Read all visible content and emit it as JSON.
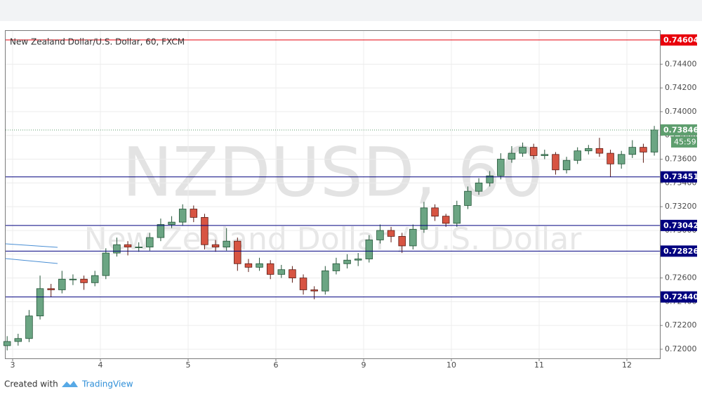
{
  "chart_data": {
    "type": "candlestick",
    "title": "New Zealand Dollar/U.S. Dollar, 60, FXCM",
    "watermark": "NZDUSD, 60",
    "watermark_subtitle": "New Zealand Dollar / U.S. Dollar",
    "footer_text": "Created with",
    "footer_brand": "TradingView",
    "up_color": "#6ba583",
    "down_color": "#d75442",
    "grid": true,
    "xlim": [
      -0.08,
      7.376
    ],
    "xticks": [
      {
        "value": 0,
        "label": "3"
      },
      {
        "value": 1,
        "label": "4"
      },
      {
        "value": 2,
        "label": "5"
      },
      {
        "value": 3,
        "label": "6"
      },
      {
        "value": 4,
        "label": "9"
      },
      {
        "value": 5,
        "label": "10"
      },
      {
        "value": 6,
        "label": "11"
      },
      {
        "value": 7,
        "label": "12"
      }
    ],
    "ylim": [
      0.71923,
      0.7468
    ],
    "yticks": [
      {
        "value": 0.72,
        "label": "0.72000"
      },
      {
        "value": 0.722,
        "label": "0.72200"
      },
      {
        "value": 0.724,
        "label": "0.72400"
      },
      {
        "value": 0.726,
        "label": "0.72600"
      },
      {
        "value": 0.728,
        "label": "0.72800"
      },
      {
        "value": 0.73,
        "label": "0.73000"
      },
      {
        "value": 0.732,
        "label": "0.73200"
      },
      {
        "value": 0.734,
        "label": "0.73400"
      },
      {
        "value": 0.736,
        "label": "0.73600"
      },
      {
        "value": 0.738,
        "label": "0.73800"
      },
      {
        "value": 0.74,
        "label": "0.74000"
      },
      {
        "value": 0.742,
        "label": "0.74200"
      },
      {
        "value": 0.744,
        "label": "0.74400"
      }
    ],
    "hlines": [
      {
        "value": 0.74604,
        "color": "#e8000b"
      },
      {
        "value": 0.73451,
        "color": "#00007f"
      },
      {
        "value": 0.73042,
        "color": "#00007f"
      },
      {
        "value": 0.72826,
        "color": "#00007f"
      },
      {
        "value": 0.7244,
        "label": "0.72440",
        "color": "#00007f"
      }
    ],
    "last_price": 0.73846,
    "last_price_color": "#5e9e6e",
    "countdown": "45:59",
    "x": [
      -0.0625,
      0.0625,
      0.1875,
      0.3125,
      0.4375,
      0.5625,
      0.6875,
      0.8125,
      0.9375,
      1.0625,
      1.1875,
      1.3125,
      1.4375,
      1.5625,
      1.6875,
      1.8125,
      1.9375,
      2.0625,
      2.1875,
      2.3125,
      2.4375,
      2.5625,
      2.6875,
      2.8125,
      2.9375,
      3.0625,
      3.1875,
      3.3125,
      3.4375,
      3.5625,
      3.6875,
      3.8125,
      3.9375,
      4.0625,
      4.1875,
      4.3125,
      4.4375,
      4.5625,
      4.6875,
      4.8125,
      4.9375,
      5.0625,
      5.1875,
      5.3125,
      5.4375,
      5.5625,
      5.6875,
      5.8125,
      5.9375,
      6.0625,
      6.1875,
      6.3125,
      6.4375,
      6.5625,
      6.6875,
      6.8125,
      6.9375,
      7.0625,
      7.1875,
      7.3125
    ],
    "open": [
      0.7203,
      0.72065,
      0.7209,
      0.7228,
      0.7251,
      0.725,
      0.7259,
      0.7259,
      0.7256,
      0.7262,
      0.7281,
      0.7288,
      0.7286,
      0.7286,
      0.7294,
      0.7305,
      0.7307,
      0.7318,
      0.7311,
      0.7288,
      0.7286,
      0.7291,
      0.7272,
      0.7269,
      0.7272,
      0.7263,
      0.7267,
      0.726,
      0.725,
      0.7249,
      0.7266,
      0.7272,
      0.7275,
      0.7276,
      0.7292,
      0.73,
      0.7295,
      0.7287,
      0.7301,
      0.7319,
      0.7312,
      0.7306,
      0.7321,
      0.7333,
      0.734,
      0.7346,
      0.736,
      0.7365,
      0.737,
      0.7363,
      0.7364,
      0.7351,
      0.7359,
      0.7367,
      0.7369,
      0.7365,
      0.7356,
      0.7364,
      0.737,
      0.7366
    ],
    "high": [
      0.7211,
      0.7213,
      0.7233,
      0.7262,
      0.7255,
      0.7266,
      0.7263,
      0.7262,
      0.7266,
      0.7285,
      0.7294,
      0.7291,
      0.729,
      0.7298,
      0.731,
      0.7312,
      0.7322,
      0.7321,
      0.7314,
      0.7292,
      0.7302,
      0.7294,
      0.7276,
      0.7277,
      0.7275,
      0.7271,
      0.727,
      0.7263,
      0.7253,
      0.727,
      0.7277,
      0.728,
      0.7281,
      0.7296,
      0.7305,
      0.7303,
      0.7298,
      0.7305,
      0.7324,
      0.7322,
      0.7314,
      0.7325,
      0.7337,
      0.7344,
      0.735,
      0.7365,
      0.7371,
      0.7374,
      0.7373,
      0.7368,
      0.7366,
      0.7362,
      0.737,
      0.7372,
      0.7378,
      0.7368,
      0.7367,
      0.7376,
      0.7373,
      0.7388
    ],
    "low": [
      0.7199,
      0.7203,
      0.7206,
      0.7225,
      0.7244,
      0.7247,
      0.7254,
      0.725,
      0.7253,
      0.7259,
      0.7278,
      0.7279,
      0.7282,
      0.7283,
      0.7291,
      0.7302,
      0.7304,
      0.7307,
      0.7284,
      0.7282,
      0.7283,
      0.7266,
      0.7265,
      0.7266,
      0.7259,
      0.726,
      0.7256,
      0.7246,
      0.7242,
      0.7246,
      0.7263,
      0.7268,
      0.727,
      0.7273,
      0.7289,
      0.729,
      0.7281,
      0.7284,
      0.7298,
      0.7308,
      0.7303,
      0.7303,
      0.7318,
      0.733,
      0.7337,
      0.7343,
      0.7357,
      0.7362,
      0.736,
      0.736,
      0.7347,
      0.7348,
      0.7356,
      0.7364,
      0.7362,
      0.7345,
      0.7352,
      0.7361,
      0.7357,
      0.7363
    ],
    "close": [
      0.72065,
      0.7209,
      0.7228,
      0.7251,
      0.725,
      0.7259,
      0.7259,
      0.7256,
      0.7262,
      0.7281,
      0.7288,
      0.7286,
      0.7286,
      0.7294,
      0.7305,
      0.7307,
      0.7318,
      0.7311,
      0.7288,
      0.7286,
      0.7291,
      0.7272,
      0.7269,
      0.7272,
      0.7263,
      0.7267,
      0.726,
      0.725,
      0.7249,
      0.7266,
      0.7272,
      0.7275,
      0.7276,
      0.7292,
      0.73,
      0.7295,
      0.7287,
      0.7301,
      0.7319,
      0.7312,
      0.7306,
      0.7321,
      0.7333,
      0.734,
      0.7346,
      0.736,
      0.7365,
      0.737,
      0.7363,
      0.7364,
      0.7351,
      0.7359,
      0.7367,
      0.7369,
      0.7365,
      0.7356,
      0.7364,
      0.737,
      0.7366,
      0.73846
    ]
  }
}
